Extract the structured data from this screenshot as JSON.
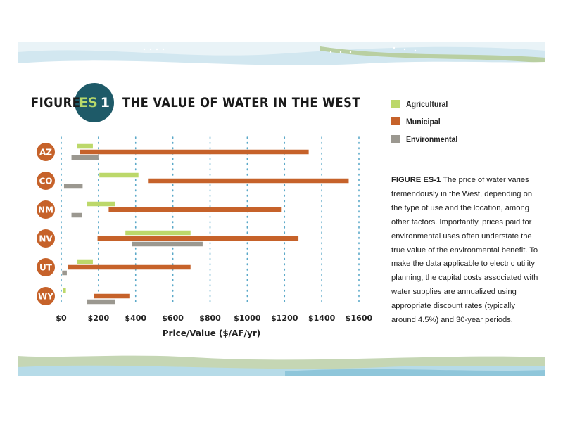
{
  "title": {
    "prefix": "FIGURE",
    "badge_es": "ES",
    "badge_num": "1",
    "main": "THE VALUE OF WATER IN THE WEST"
  },
  "colors": {
    "agricultural": "#bcd86a",
    "municipal": "#c6622a",
    "environmental": "#9b9890",
    "badge": "#1e5a68",
    "state_circle": "#c6622a",
    "gridline": "#5aa8c8",
    "wave_blue": "#cfe6ef",
    "wave_green": "#c2d4b0"
  },
  "caption": {
    "head": "FIGURE ES-1",
    "body": "The price of water varies tremendously in the West, depending on the type of use and the location, among other factors. Importantly, prices paid for environmental uses often understate the true value of the environmental benefit. To make the data applicable to electric utility planning, the capital costs associated with water supplies are annualized using appropriate discount rates (typically around 4.5%) and 30-year periods."
  },
  "chart_data": {
    "type": "bar",
    "orientation": "horizontal-range",
    "xlabel": "Price/Value ($/AF/yr)",
    "xlim": [
      0,
      1600
    ],
    "xticks": [
      "$0",
      "$200",
      "$400",
      "$600",
      "$800",
      "$1000",
      "$1200",
      "$1400",
      "$1600"
    ],
    "legend_position": "right-top",
    "grid": "vertical dotted",
    "categories": [
      "AZ",
      "CO",
      "NM",
      "NV",
      "UT",
      "WY"
    ],
    "series": [
      {
        "name": "Agricultural",
        "ranges": [
          [
            85,
            170
          ],
          [
            205,
            415
          ],
          [
            140,
            290
          ],
          [
            345,
            695
          ],
          [
            85,
            170
          ],
          [
            10,
            25
          ]
        ]
      },
      {
        "name": "Municipal",
        "ranges": [
          [
            100,
            1330
          ],
          [
            470,
            1545
          ],
          [
            255,
            1185
          ],
          [
            195,
            1275
          ],
          [
            35,
            695
          ],
          [
            175,
            370
          ]
        ]
      },
      {
        "name": "Environmental",
        "ranges": [
          [
            55,
            200
          ],
          [
            15,
            115
          ],
          [
            55,
            110
          ],
          [
            380,
            760
          ],
          [
            5,
            30
          ],
          [
            140,
            290
          ]
        ]
      }
    ]
  }
}
